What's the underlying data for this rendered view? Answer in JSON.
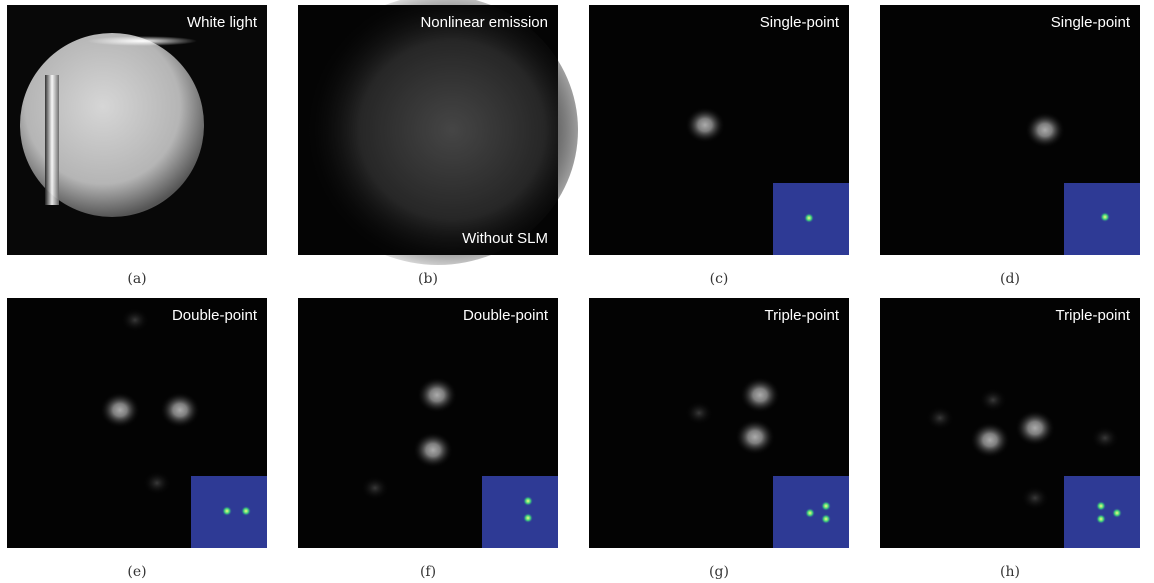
{
  "panels": [
    {
      "label": "White light",
      "caption": "(a)"
    },
    {
      "label": "Nonlinear emission",
      "sublabel": "Without SLM",
      "caption": "(b)"
    },
    {
      "label": "Single-point",
      "caption": "(c)"
    },
    {
      "label": "Single-point",
      "caption": "(d)"
    },
    {
      "label": "Double-point",
      "caption": "(e)"
    },
    {
      "label": "Double-point",
      "caption": "(f)"
    },
    {
      "label": "Triple-point",
      "caption": "(g)"
    },
    {
      "label": "Triple-point",
      "caption": "(h)"
    }
  ]
}
